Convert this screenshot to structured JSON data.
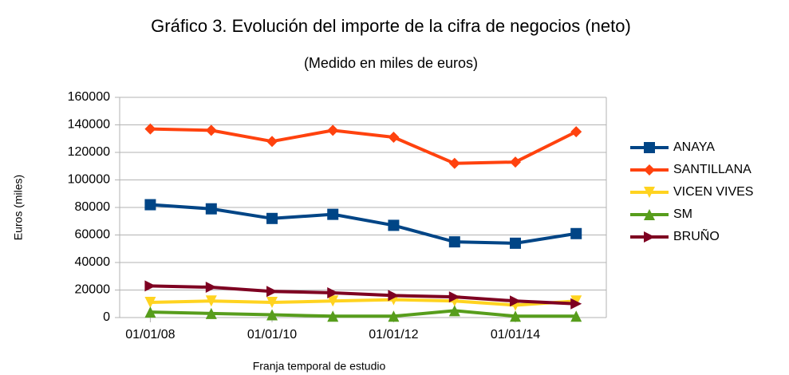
{
  "chart_data": {
    "type": "line",
    "title": "Gráfico 3. Evolución del importe de la cifra de negocios (neto)",
    "subtitle": "(Medido en miles de euros)",
    "ylabel": "Euros (miles)",
    "xlabel": "Franja temporal de estudio",
    "x": [
      "2008-01-01",
      "2009-01-01",
      "2010-01-01",
      "2011-01-01",
      "2012-01-01",
      "2013-01-01",
      "2014-01-01",
      "2015-01-01"
    ],
    "xlim": [
      "2007-07-01",
      "2015-07-01"
    ],
    "xticks": [
      {
        "value": "2008-01-01",
        "label": "01/01/08"
      },
      {
        "value": "2010-01-01",
        "label": "01/01/10"
      },
      {
        "value": "2012-01-01",
        "label": "01/01/12"
      },
      {
        "value": "2014-01-01",
        "label": "01/01/14"
      }
    ],
    "ylim": [
      0,
      160000
    ],
    "yticks": [
      0,
      20000,
      40000,
      60000,
      80000,
      100000,
      120000,
      140000,
      160000
    ],
    "grid": true,
    "legend": "right",
    "series": [
      {
        "name": "ANAYA",
        "color": "#004586",
        "marker": "square",
        "values": [
          82000,
          79000,
          72000,
          75000,
          67000,
          55000,
          54000,
          61000
        ]
      },
      {
        "name": "SANTILLANA",
        "color": "#ff420e",
        "marker": "diamond",
        "values": [
          137000,
          136000,
          128000,
          136000,
          131000,
          112000,
          113000,
          135000
        ]
      },
      {
        "name": "VICEN VIVES",
        "color": "#ffd320",
        "marker": "triangle-down",
        "values": [
          11000,
          12000,
          11000,
          12000,
          13000,
          12000,
          9000,
          12000
        ]
      },
      {
        "name": "SM",
        "color": "#579d1c",
        "marker": "triangle-up",
        "values": [
          4000,
          3000,
          2000,
          1000,
          1000,
          5000,
          1000,
          1000
        ]
      },
      {
        "name": "BRUÑO",
        "color": "#7e0021",
        "marker": "triangle-right",
        "values": [
          23000,
          22000,
          19000,
          18000,
          16000,
          15000,
          12000,
          10000
        ]
      }
    ]
  }
}
